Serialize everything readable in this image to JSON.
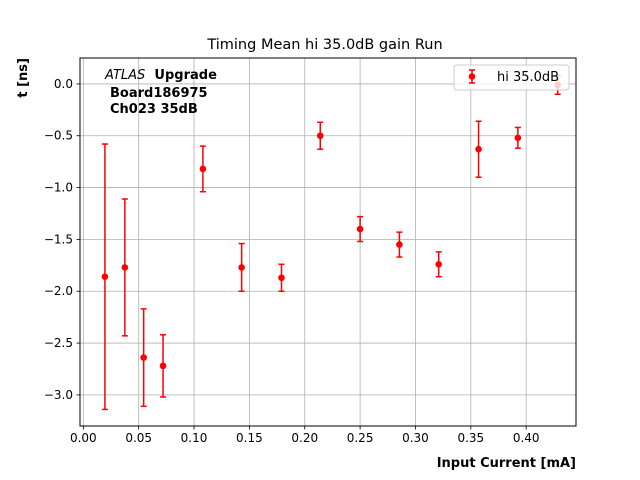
{
  "chart_data": {
    "type": "scatter",
    "title": "Timing Mean hi 35.0dB gain Run",
    "xlabel": "Input Current [mA]",
    "ylabel": "t [ns]",
    "xlim": [
      -0.003,
      0.445
    ],
    "ylim": [
      -3.3,
      0.25
    ],
    "x_ticks": [
      "0.00",
      "0.05",
      "0.10",
      "0.15",
      "0.20",
      "0.25",
      "0.30",
      "0.35",
      "0.40"
    ],
    "x_tick_values": [
      0.0,
      0.05,
      0.1,
      0.15,
      0.2,
      0.25,
      0.3,
      0.35,
      0.4
    ],
    "y_ticks": [
      "0.0",
      "−0.5",
      "−1.0",
      "−1.5",
      "−2.0",
      "−2.5",
      "−3.0"
    ],
    "y_tick_values": [
      0.0,
      -0.5,
      -1.0,
      -1.5,
      -2.0,
      -2.5,
      -3.0
    ],
    "grid": true,
    "legend_position": "top-right",
    "annotation": {
      "line1_italic": "ATLAS",
      "line1_bold": "Upgrade",
      "line2": "Board186975",
      "line3": "Ch023 35dB"
    },
    "series": [
      {
        "name": "hi 35.0dB",
        "color": "#ff0000",
        "points": [
          {
            "x": 0.0195,
            "y": -1.86,
            "err": 1.28
          },
          {
            "x": 0.0375,
            "y": -1.77,
            "err": 0.66
          },
          {
            "x": 0.0545,
            "y": -2.64,
            "err": 0.47
          },
          {
            "x": 0.072,
            "y": -2.72,
            "err": 0.3
          },
          {
            "x": 0.108,
            "y": -0.82,
            "err": 0.22
          },
          {
            "x": 0.143,
            "y": -1.77,
            "err": 0.23
          },
          {
            "x": 0.179,
            "y": -1.87,
            "err": 0.13
          },
          {
            "x": 0.214,
            "y": -0.5,
            "err": 0.13
          },
          {
            "x": 0.25,
            "y": -1.4,
            "err": 0.12
          },
          {
            "x": 0.2855,
            "y": -1.55,
            "err": 0.12
          },
          {
            "x": 0.321,
            "y": -1.74,
            "err": 0.12
          },
          {
            "x": 0.357,
            "y": -0.63,
            "err": 0.27
          },
          {
            "x": 0.3925,
            "y": -0.52,
            "err": 0.1
          },
          {
            "x": 0.4285,
            "y": -0.01,
            "err": 0.09
          }
        ]
      }
    ]
  }
}
